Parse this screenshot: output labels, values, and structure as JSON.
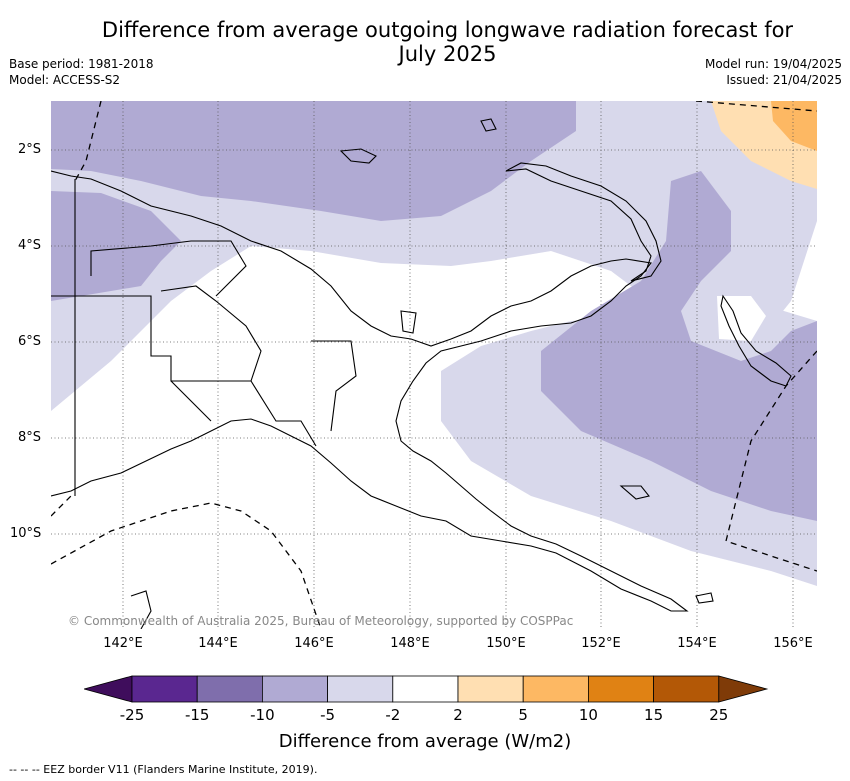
{
  "title": "Difference from average outgoing longwave radiation forecast for\nJuly 2025",
  "base_period": "Base period: 1981-2018",
  "model": "Model: ACCESS-S2",
  "model_run": "Model run: 19/04/2025",
  "issued": "Issued: 21/04/2025",
  "copyright": "© Commonwealth of Australia 2025, Bureau of Meteorology, supported by COSPPac",
  "lat_labels": [
    "2°S",
    "4°S",
    "6°S",
    "8°S",
    "10°S"
  ],
  "lon_labels": [
    "142°E",
    "144°E",
    "146°E",
    "148°E",
    "150°E",
    "152°E",
    "154°E",
    "156°E"
  ],
  "colorbar": {
    "ticks": [
      "-25",
      "-15",
      "-10",
      "-5",
      "-2",
      "2",
      "5",
      "10",
      "15",
      "25"
    ],
    "colors": [
      "#3f0d5c",
      "#5a2790",
      "#7f6eac",
      "#b0aad3",
      "#d8d8eb",
      "#ffffff",
      "#ffdfb2",
      "#fdb863",
      "#e08214",
      "#b35806",
      "#7f3b08"
    ],
    "label": "Difference from average (W/m2)"
  },
  "footer": "-- -- -- EEZ border V11 (Flanders Marine Institute, 2019)."
}
